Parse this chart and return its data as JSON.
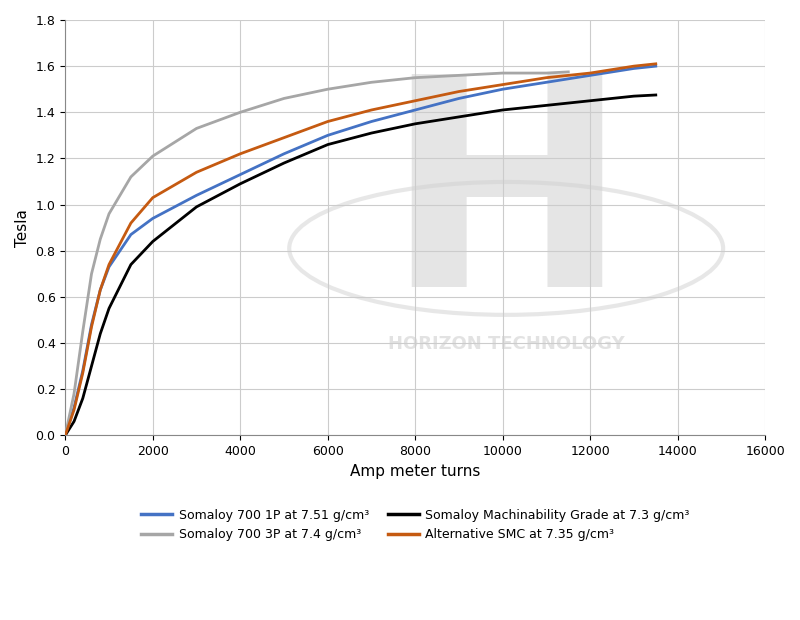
{
  "title": "",
  "xlabel": "Amp meter turns",
  "ylabel": "Tesla",
  "xlim": [
    0,
    16000
  ],
  "ylim": [
    0,
    1.8
  ],
  "xticks": [
    0,
    2000,
    4000,
    6000,
    8000,
    10000,
    12000,
    14000,
    16000
  ],
  "yticks": [
    0,
    0.2,
    0.4,
    0.6,
    0.8,
    1.0,
    1.2,
    1.4,
    1.6,
    1.8
  ],
  "background_color": "#ffffff",
  "grid_color": "#cccccc",
  "watermark_letter": "H",
  "watermark_text": "HORIZON TECHNOLOGY",
  "watermark_color": "#d0d0d0",
  "series": [
    {
      "label": "Somaloy 700 1P at 7.51 g/cm³",
      "color": "#4472c4",
      "linewidth": 2.0,
      "x": [
        0,
        200,
        400,
        600,
        800,
        1000,
        1500,
        2000,
        3000,
        4000,
        5000,
        6000,
        7000,
        8000,
        9000,
        10000,
        11000,
        12000,
        13000,
        13500
      ],
      "y": [
        0,
        0.12,
        0.28,
        0.48,
        0.63,
        0.73,
        0.87,
        0.94,
        1.04,
        1.13,
        1.22,
        1.3,
        1.36,
        1.41,
        1.46,
        1.5,
        1.53,
        1.56,
        1.59,
        1.6
      ]
    },
    {
      "label": "Somaloy 700 3P at 7.4 g/cm³",
      "color": "#a6a6a6",
      "linewidth": 2.0,
      "x": [
        0,
        200,
        400,
        600,
        800,
        1000,
        1500,
        2000,
        3000,
        4000,
        5000,
        6000,
        7000,
        8000,
        9000,
        10000,
        11000,
        11500
      ],
      "y": [
        0,
        0.18,
        0.45,
        0.7,
        0.85,
        0.96,
        1.12,
        1.21,
        1.33,
        1.4,
        1.46,
        1.5,
        1.53,
        1.55,
        1.56,
        1.57,
        1.57,
        1.575
      ]
    },
    {
      "label": "Somaloy Machinability Grade at 7.3 g/cm³",
      "color": "#000000",
      "linewidth": 2.0,
      "x": [
        0,
        200,
        400,
        600,
        800,
        1000,
        1500,
        2000,
        3000,
        4000,
        5000,
        6000,
        7000,
        8000,
        9000,
        10000,
        11000,
        12000,
        13000,
        13500
      ],
      "y": [
        0,
        0.06,
        0.16,
        0.3,
        0.44,
        0.55,
        0.74,
        0.84,
        0.99,
        1.09,
        1.18,
        1.26,
        1.31,
        1.35,
        1.38,
        1.41,
        1.43,
        1.45,
        1.47,
        1.475
      ]
    },
    {
      "label": "Alternative SMC at 7.35 g/cm³",
      "color": "#c55a11",
      "linewidth": 2.0,
      "x": [
        0,
        200,
        400,
        600,
        800,
        1000,
        1500,
        2000,
        3000,
        4000,
        5000,
        6000,
        7000,
        8000,
        9000,
        10000,
        11000,
        12000,
        13000,
        13500
      ],
      "y": [
        0,
        0.11,
        0.27,
        0.47,
        0.63,
        0.74,
        0.92,
        1.03,
        1.14,
        1.22,
        1.29,
        1.36,
        1.41,
        1.45,
        1.49,
        1.52,
        1.55,
        1.57,
        1.6,
        1.61
      ]
    }
  ]
}
